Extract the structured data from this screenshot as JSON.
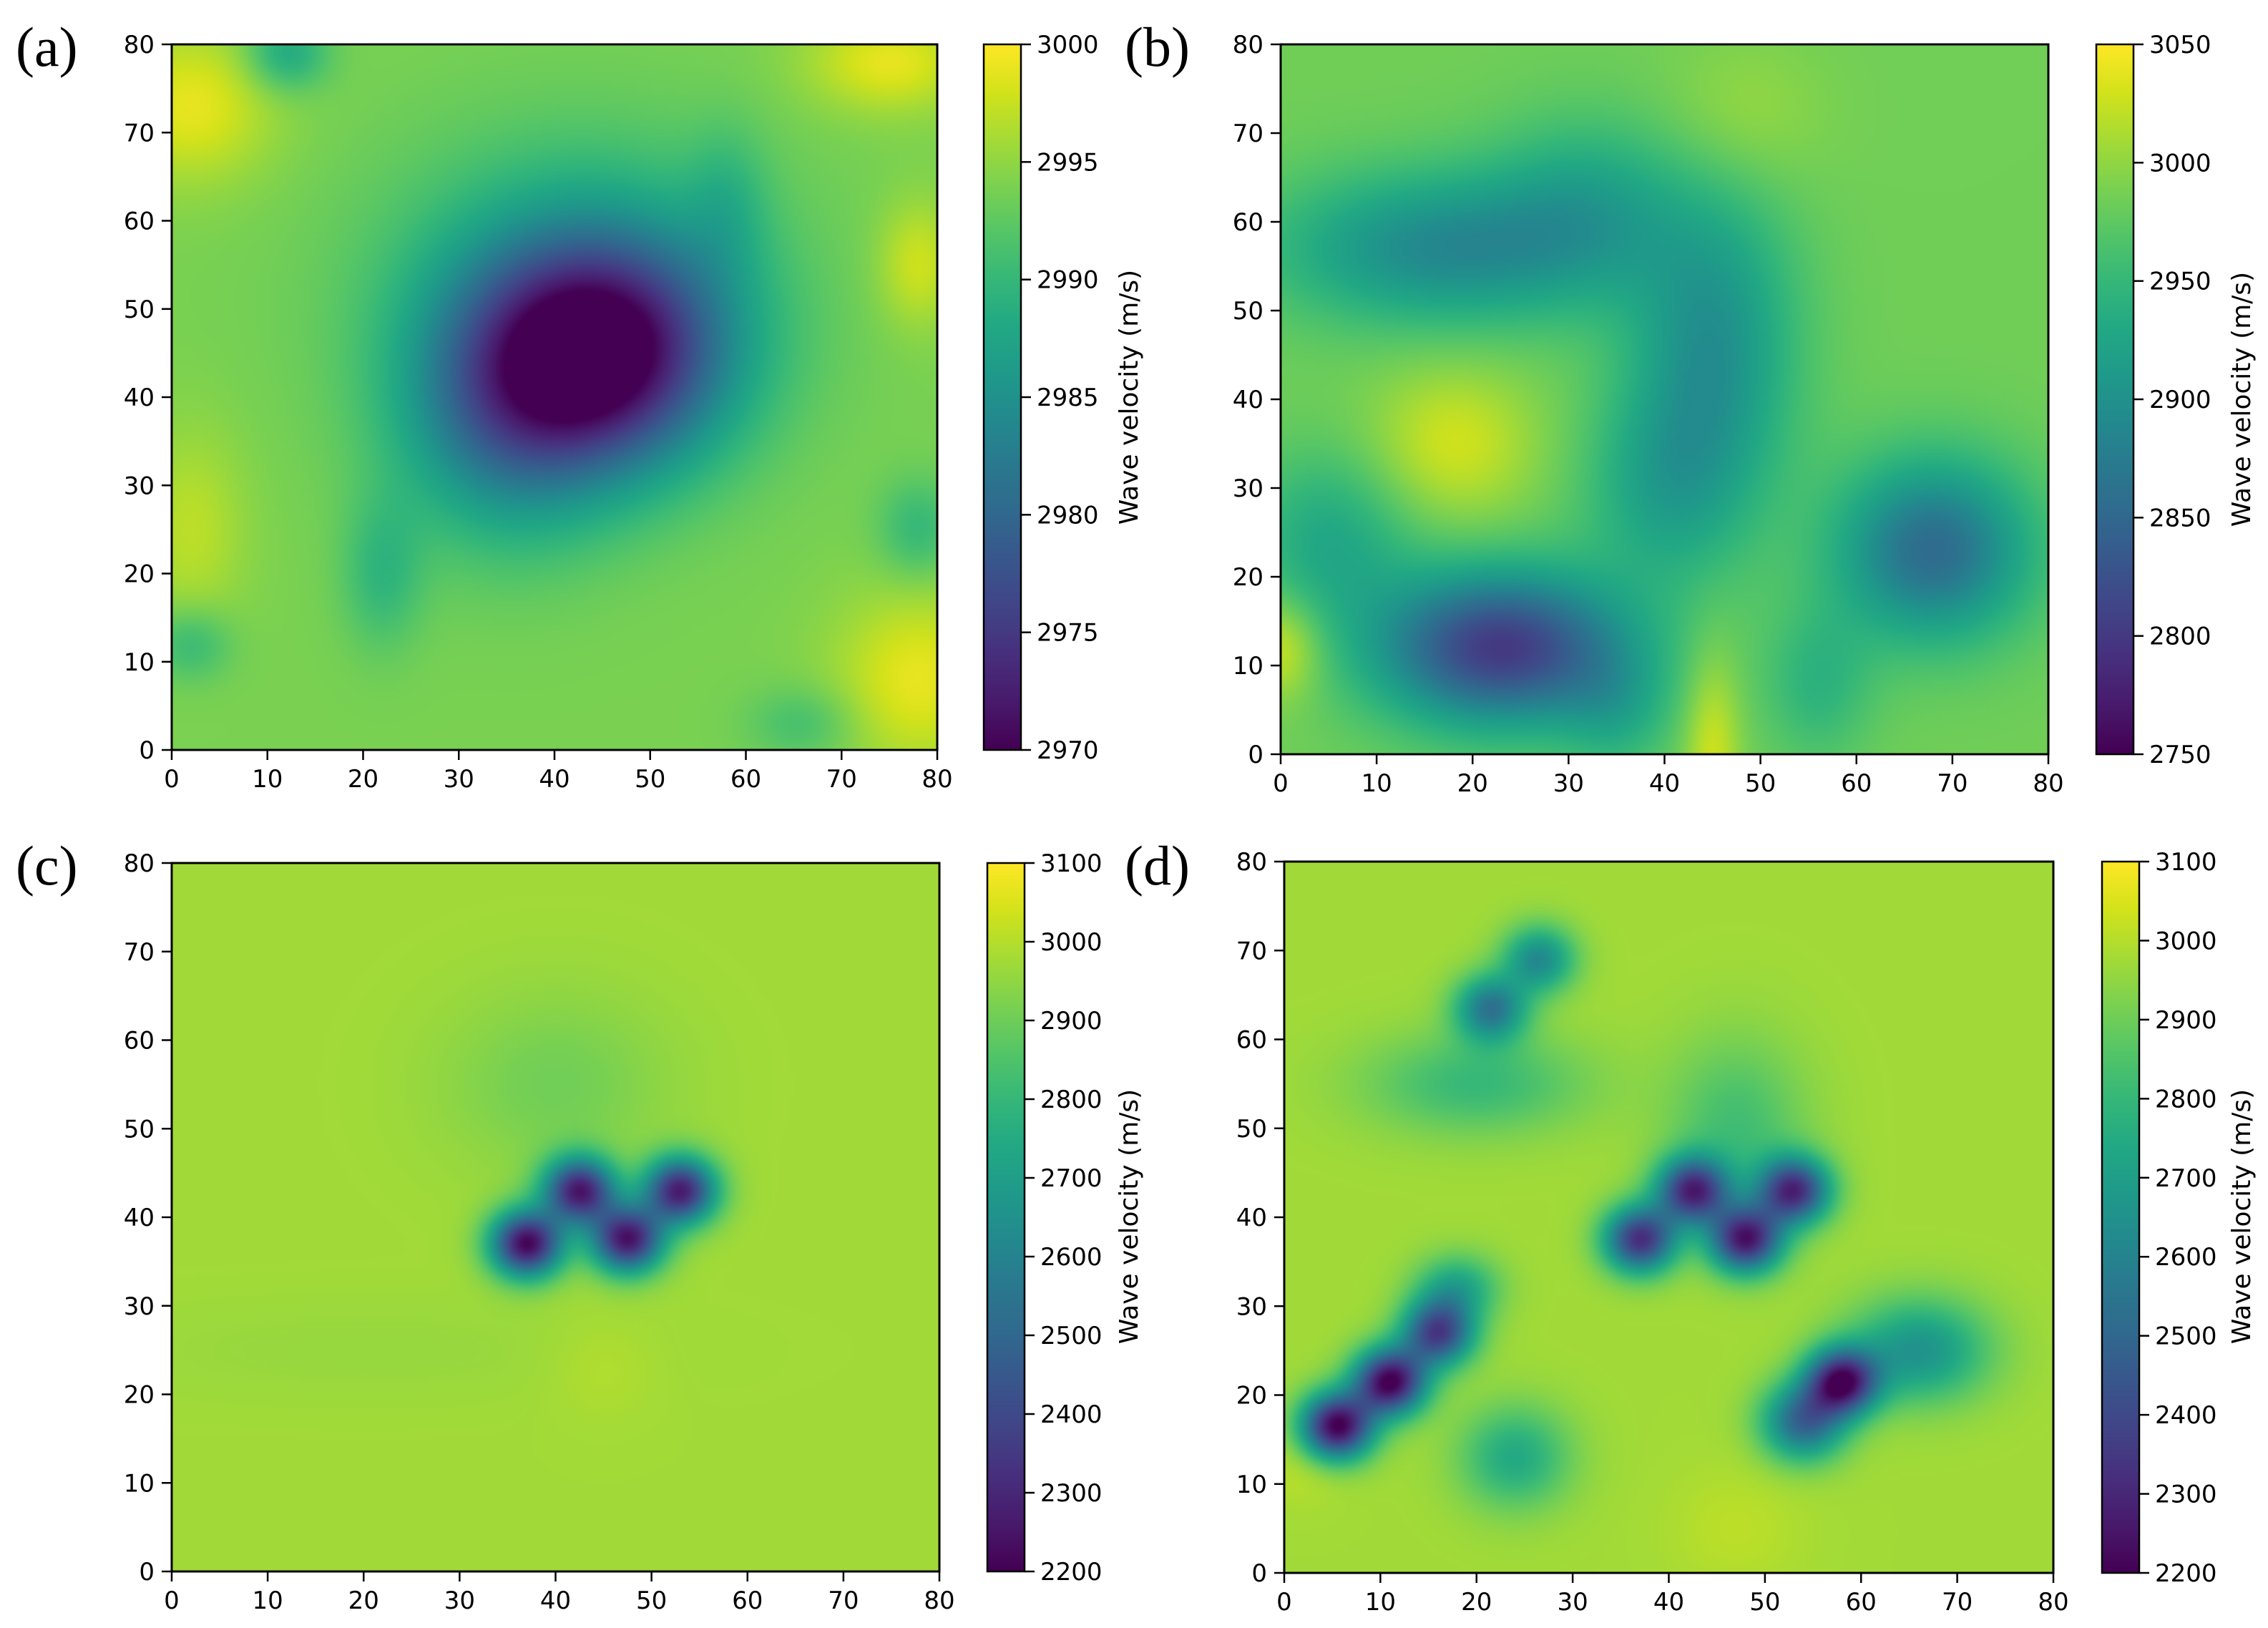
{
  "chart_data": [
    {
      "type": "heatmap",
      "panel_label": "(a)",
      "colormap": "viridis",
      "x_ticks": [
        0,
        10,
        20,
        30,
        40,
        50,
        60,
        70,
        80
      ],
      "y_ticks": [
        0,
        10,
        20,
        30,
        40,
        50,
        60,
        70,
        80
      ],
      "xlim": [
        0,
        80
      ],
      "ylim": [
        0,
        80
      ],
      "colorbar": {
        "label": "Wave velocity (m/s)",
        "range": [
          2970,
          3000
        ],
        "ticks": [
          2970,
          2975,
          2980,
          2985,
          2990,
          2995,
          3000
        ]
      },
      "field": {
        "base": 2994,
        "anomalies": [
          {
            "x": 45,
            "y": 45,
            "sx": 9,
            "sy": 9,
            "amp": -22
          },
          {
            "x": 35,
            "y": 38,
            "sx": 8,
            "sy": 10,
            "amp": -10
          },
          {
            "x": 42,
            "y": 52,
            "sx": 14,
            "sy": 12,
            "amp": -6
          },
          {
            "x": 2,
            "y": 73,
            "sx": 6,
            "sy": 6,
            "amp": 5
          },
          {
            "x": 75,
            "y": 78,
            "sx": 6,
            "sy": 4,
            "amp": 5
          },
          {
            "x": 78,
            "y": 8,
            "sx": 6,
            "sy": 7,
            "amp": 5
          },
          {
            "x": 78,
            "y": 55,
            "sx": 3,
            "sy": 5,
            "amp": 4
          },
          {
            "x": 2,
            "y": 25,
            "sx": 4,
            "sy": 8,
            "amp": 3
          },
          {
            "x": 12,
            "y": 79,
            "sx": 3,
            "sy": 3,
            "amp": -6
          },
          {
            "x": 22,
            "y": 20,
            "sx": 3,
            "sy": 6,
            "amp": -4
          },
          {
            "x": 2,
            "y": 12,
            "sx": 3,
            "sy": 3,
            "amp": -4
          },
          {
            "x": 58,
            "y": 62,
            "sx": 3,
            "sy": 6,
            "amp": -3
          },
          {
            "x": 78,
            "y": 25,
            "sx": 3,
            "sy": 4,
            "amp": -4
          },
          {
            "x": 66,
            "y": 3,
            "sx": 4,
            "sy": 3,
            "amp": -3
          }
        ]
      }
    },
    {
      "type": "heatmap",
      "panel_label": "(b)",
      "colormap": "viridis",
      "x_ticks": [
        0,
        10,
        20,
        30,
        40,
        50,
        60,
        70,
        80
      ],
      "y_ticks": [
        0,
        10,
        20,
        30,
        40,
        50,
        60,
        70,
        80
      ],
      "xlim": [
        0,
        80
      ],
      "ylim": [
        0,
        80
      ],
      "colorbar": {
        "label": "Wave velocity (m/s)",
        "range": [
          2750,
          3050
        ],
        "ticks": [
          2750,
          2800,
          2850,
          2900,
          2950,
          3000,
          3050
        ]
      },
      "field": {
        "base": 2985,
        "anomalies": [
          {
            "x": 23,
            "y": 12,
            "sx": 9,
            "sy": 6,
            "amp": -185
          },
          {
            "x": 68,
            "y": 23,
            "sx": 7,
            "sy": 7,
            "amp": -130
          },
          {
            "x": 17,
            "y": 57,
            "sx": 12,
            "sy": 6,
            "amp": -95
          },
          {
            "x": 45,
            "y": 46,
            "sx": 6,
            "sy": 12,
            "amp": -85
          },
          {
            "x": 40,
            "y": 30,
            "sx": 6,
            "sy": 8,
            "amp": -55
          },
          {
            "x": 32,
            "y": 62,
            "sx": 7,
            "sy": 7,
            "amp": -50
          },
          {
            "x": 5,
            "y": 24,
            "sx": 6,
            "sy": 7,
            "amp": -55
          },
          {
            "x": 35,
            "y": 5,
            "sx": 4,
            "sy": 5,
            "amp": -40
          },
          {
            "x": 56,
            "y": 8,
            "sx": 4,
            "sy": 6,
            "amp": -40
          },
          {
            "x": 0,
            "y": 12,
            "sx": 3,
            "sy": 4,
            "amp": 50
          },
          {
            "x": 18,
            "y": 35,
            "sx": 6,
            "sy": 6,
            "amp": 45
          },
          {
            "x": 45,
            "y": 0,
            "sx": 2,
            "sy": 8,
            "amp": 45
          },
          {
            "x": 48,
            "y": 72,
            "sx": 6,
            "sy": 6,
            "amp": 20
          }
        ]
      }
    },
    {
      "type": "heatmap",
      "panel_label": "(c)",
      "colormap": "viridis",
      "x_ticks": [
        0,
        10,
        20,
        30,
        40,
        50,
        60,
        70,
        80
      ],
      "y_ticks": [
        0,
        10,
        20,
        30,
        40,
        50,
        60,
        70,
        80
      ],
      "xlim": [
        0,
        80
      ],
      "ylim": [
        0,
        80
      ],
      "colorbar": {
        "label": "Wave velocity (m/s)",
        "range": [
          2200,
          3100
        ],
        "ticks": [
          2200,
          2300,
          2400,
          2500,
          2600,
          2700,
          2800,
          2900,
          3000,
          3100
        ]
      },
      "field": {
        "base": 2975,
        "anomalies": [
          {
            "x": 37,
            "y": 37,
            "sx": 2.6,
            "sy": 2.6,
            "amp": -760
          },
          {
            "x": 42.5,
            "y": 43,
            "sx": 2.6,
            "sy": 2.6,
            "amp": -700
          },
          {
            "x": 47.5,
            "y": 37.5,
            "sx": 2.6,
            "sy": 2.6,
            "amp": -720
          },
          {
            "x": 53,
            "y": 43,
            "sx": 2.6,
            "sy": 2.6,
            "amp": -700
          },
          {
            "x": 40,
            "y": 55,
            "sx": 8,
            "sy": 7,
            "amp": -70
          },
          {
            "x": 45,
            "y": 23,
            "sx": 4,
            "sy": 4,
            "amp": 25
          },
          {
            "x": 20,
            "y": 25,
            "sx": 20,
            "sy": 4,
            "amp": -15
          }
        ]
      }
    },
    {
      "type": "heatmap",
      "panel_label": "(d)",
      "colormap": "viridis",
      "x_ticks": [
        0,
        10,
        20,
        30,
        40,
        50,
        60,
        70,
        80
      ],
      "y_ticks": [
        0,
        10,
        20,
        30,
        40,
        50,
        60,
        70,
        80
      ],
      "xlim": [
        0,
        80
      ],
      "ylim": [
        0,
        80
      ],
      "colorbar": {
        "label": "Wave velocity (m/s)",
        "range": [
          2200,
          3100
        ],
        "ticks": [
          2200,
          2300,
          2400,
          2500,
          2600,
          2700,
          2800,
          2900,
          3000,
          3100
        ]
      },
      "field": {
        "base": 2975,
        "anomalies": [
          {
            "x": 37,
            "y": 37.5,
            "sx": 2.6,
            "sy": 2.6,
            "amp": -650
          },
          {
            "x": 42.5,
            "y": 43,
            "sx": 2.6,
            "sy": 2.6,
            "amp": -650
          },
          {
            "x": 48,
            "y": 37.5,
            "sx": 2.6,
            "sy": 2.6,
            "amp": -700
          },
          {
            "x": 53,
            "y": 43,
            "sx": 2.6,
            "sy": 2.6,
            "amp": -650
          },
          {
            "x": 5.5,
            "y": 16.5,
            "sx": 2.6,
            "sy": 2.6,
            "amp": -780
          },
          {
            "x": 11,
            "y": 21.5,
            "sx": 2.6,
            "sy": 2.6,
            "amp": -780
          },
          {
            "x": 16,
            "y": 27,
            "sx": 2.6,
            "sy": 2.6,
            "amp": -600
          },
          {
            "x": 18,
            "y": 32,
            "sx": 3,
            "sy": 2.6,
            "amp": -250
          },
          {
            "x": 21.5,
            "y": 63.5,
            "sx": 2.6,
            "sy": 2.6,
            "amp": -420
          },
          {
            "x": 26.5,
            "y": 69,
            "sx": 2.6,
            "sy": 2.6,
            "amp": -350
          },
          {
            "x": 58,
            "y": 21.5,
            "sx": 2.6,
            "sy": 2.6,
            "amp": -720
          },
          {
            "x": 54,
            "y": 17,
            "sx": 3,
            "sy": 3,
            "amp": -480
          },
          {
            "x": 66,
            "y": 25,
            "sx": 5,
            "sy": 4,
            "amp": -320
          },
          {
            "x": 20,
            "y": 55,
            "sx": 8,
            "sy": 4,
            "amp": -170
          },
          {
            "x": 24,
            "y": 13,
            "sx": 4,
            "sy": 4,
            "amp": -230
          },
          {
            "x": 47,
            "y": 50,
            "sx": 5,
            "sy": 7,
            "amp": -150
          },
          {
            "x": 47,
            "y": 5,
            "sx": 5,
            "sy": 5,
            "amp": 35
          },
          {
            "x": 2,
            "y": 12,
            "sx": 3,
            "sy": 3,
            "amp": 40
          }
        ]
      }
    }
  ]
}
